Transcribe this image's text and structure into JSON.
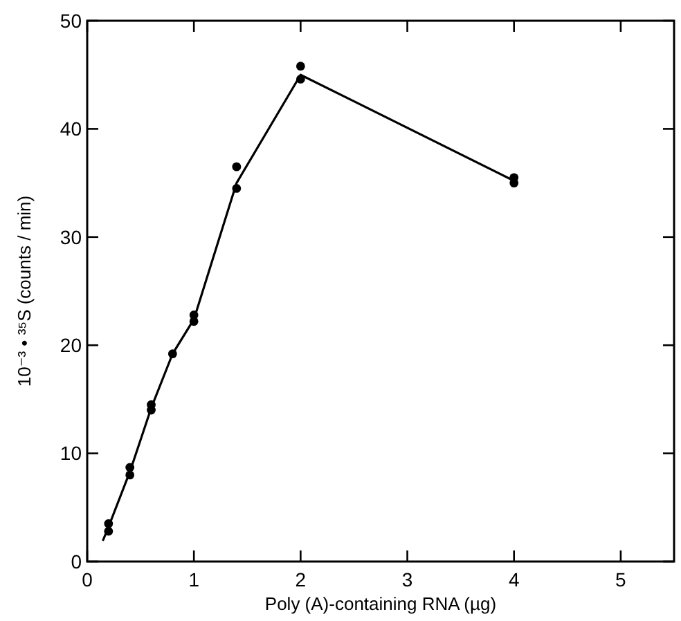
{
  "chart_data": {
    "type": "scatter",
    "xlabel": "Poly (A)-containing RNA (µg)",
    "ylabel": "10⁻³ • ³⁵S (counts / min)",
    "xlim": [
      0,
      5.5
    ],
    "ylim": [
      0,
      50
    ],
    "xticks": [
      0,
      1,
      2,
      3,
      4,
      5
    ],
    "yticks": [
      0,
      10,
      20,
      30,
      40,
      50
    ],
    "grid": false,
    "series": [
      {
        "color": "#000000",
        "marker": "circle",
        "x": [
          0.2,
          0.2,
          0.4,
          0.4,
          0.6,
          0.6,
          0.8,
          1,
          1,
          1.4,
          1.4,
          2,
          2,
          4,
          4
        ],
        "values": [
          3.5,
          2.8,
          8.7,
          8.0,
          14.5,
          14.0,
          19.2,
          22.8,
          22.2,
          36.5,
          34.5,
          45.8,
          44.6,
          35.5,
          35.0
        ]
      },
      {
        "type": "line",
        "color": "#000000",
        "marker": "none",
        "line_style": "solid",
        "x": [
          0.15,
          0.2,
          0.4,
          0.6,
          0.8,
          1,
          1.4,
          2,
          4
        ],
        "values": [
          2.0,
          3.2,
          8.3,
          14.2,
          19.2,
          22.4,
          35.0,
          45.0,
          35.2
        ]
      }
    ]
  }
}
